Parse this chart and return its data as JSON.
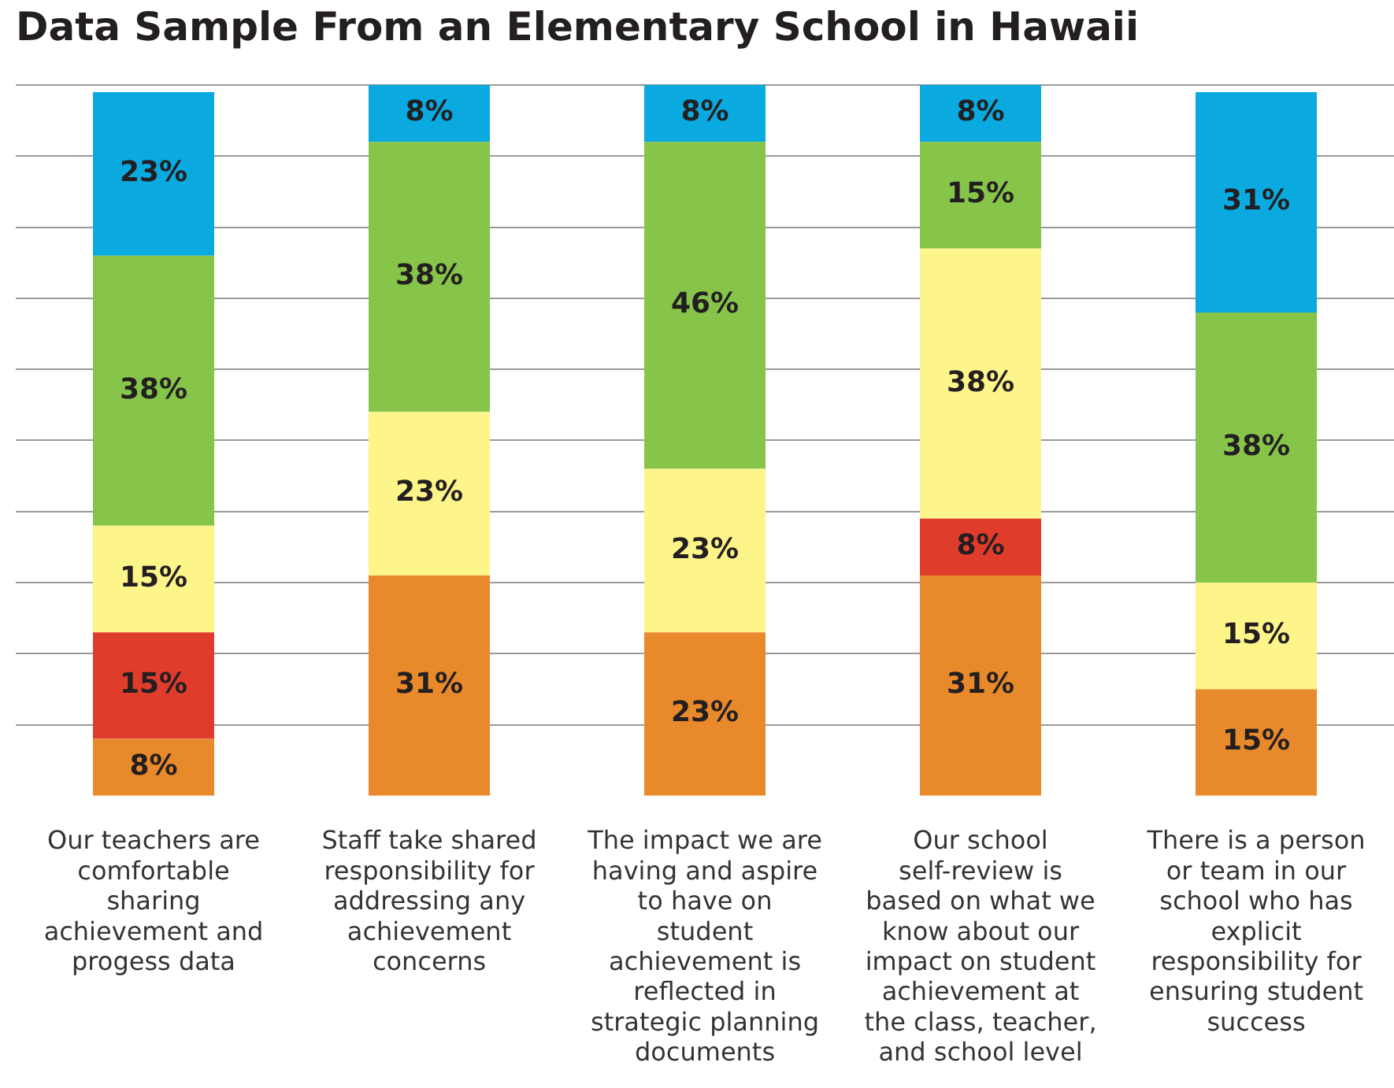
{
  "chart_data": {
    "type": "bar",
    "title": "Data Sample From an Elementary School in Hawaii",
    "categories": [
      "Our teachers are comfortable sharing achievement and progess data",
      "Staff take shared responsibility for addressing any achievement concerns",
      "The impact we are having and aspire to have on student achievement is reflected in strategic planning documents",
      "Our school self-review is based on what we know about our impact on student achievement at the class, teacher, and school level",
      "There is a person or team in our school who has explicit responsibility for ensuring student success"
    ],
    "stacked": true,
    "series": [
      {
        "color": "#e8892b",
        "values": [
          8,
          31,
          23,
          31,
          15
        ],
        "value_labels": [
          "8%",
          "31%",
          "23%",
          "31%",
          "15%"
        ]
      },
      {
        "color": "#e03c2c",
        "values": [
          15,
          null,
          null,
          8,
          null
        ],
        "value_labels": [
          "15%",
          null,
          null,
          "8%",
          null
        ]
      },
      {
        "color": "#fdf48a",
        "values": [
          15,
          23,
          23,
          38,
          15
        ],
        "value_labels": [
          "15%",
          "23%",
          "23%",
          "38%",
          "15%"
        ]
      },
      {
        "color": "#86c44a",
        "values": [
          38,
          38,
          46,
          15,
          38
        ],
        "value_labels": [
          "38%",
          "38%",
          "46%",
          "15%",
          "38%"
        ]
      },
      {
        "color": "#0aa9df",
        "values": [
          23,
          8,
          8,
          8,
          31
        ],
        "value_labels": [
          "23%",
          "8%",
          "8%",
          "8%",
          "31%"
        ]
      }
    ],
    "grid": "y",
    "legend": false
  }
}
